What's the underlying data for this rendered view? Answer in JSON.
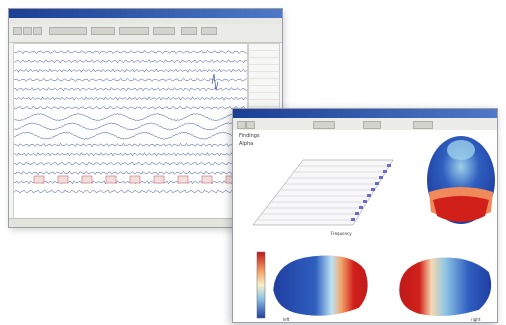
{
  "eeg_window": {
    "title": "",
    "channel_count": 16,
    "event_marker_count": 9
  },
  "map_window": {
    "header_label": "Findings",
    "subheader_label": "Alpha",
    "waterfall_caption": "Frequency",
    "lateral_left_label": "left",
    "lateral_right_label": "right"
  },
  "colors": {
    "titlebar": "#1b3f93",
    "trace": "#3a4f9a",
    "map_high": "#d1201a",
    "map_mid": "#f6d9b0",
    "map_low": "#1f3ea0",
    "marker": "#c56b6b"
  },
  "icons": [
    "toolbar-button-icon",
    "scale-bar-icon"
  ]
}
